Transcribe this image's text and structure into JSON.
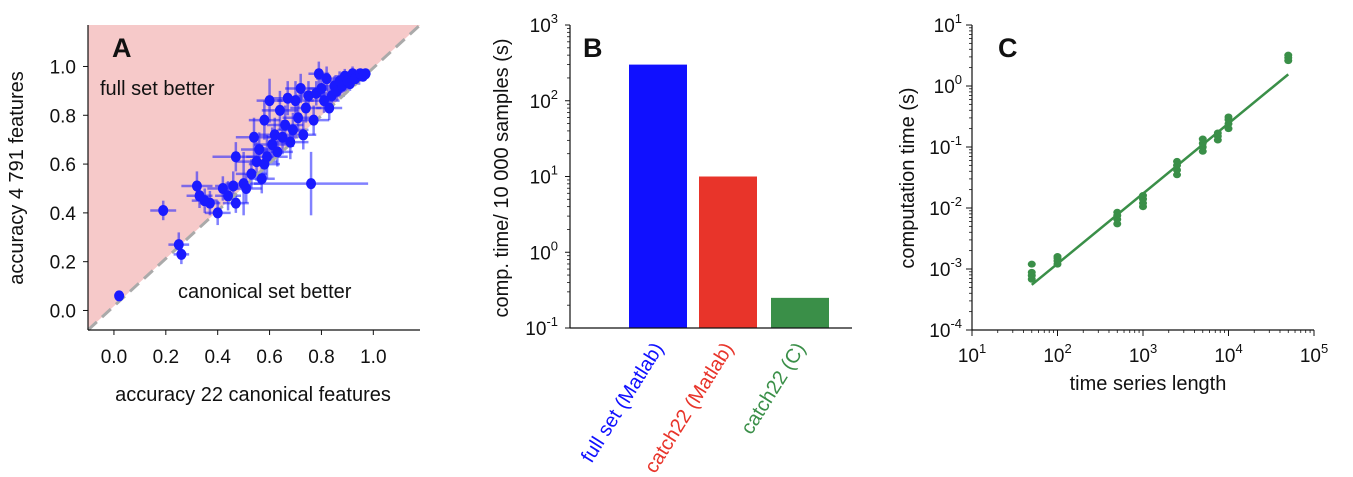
{
  "chart_data": [
    {
      "type": "scatter",
      "panel": "A",
      "xlabel": "accuracy 22 canonical features",
      "ylabel": "accuracy 4 791 features",
      "xlim": [
        -0.1,
        1.18
      ],
      "ylim": [
        -0.08,
        1.17
      ],
      "xticks": [
        "0.0",
        "0.2",
        "0.4",
        "0.6",
        "0.8",
        "1.0"
      ],
      "yticks": [
        "0.0",
        "0.2",
        "0.4",
        "0.6",
        "0.8",
        "1.0"
      ],
      "regions": {
        "upper": "full set better",
        "lower": "canonical set better"
      },
      "colors": {
        "points": "#1a1aff",
        "region": "#f6c9c9",
        "diagonal": "#aaaaaa"
      },
      "points": [
        {
          "x": 0.02,
          "y": 0.06,
          "ex": 0.0,
          "ey": 0.0
        },
        {
          "x": 0.19,
          "y": 0.41,
          "ex": 0.05,
          "ey": 0.04
        },
        {
          "x": 0.25,
          "y": 0.27,
          "ex": 0.04,
          "ey": 0.05
        },
        {
          "x": 0.26,
          "y": 0.23,
          "ex": 0.03,
          "ey": 0.04
        },
        {
          "x": 0.32,
          "y": 0.51,
          "ex": 0.06,
          "ey": 0.06
        },
        {
          "x": 0.33,
          "y": 0.47,
          "ex": 0.05,
          "ey": 0.05
        },
        {
          "x": 0.35,
          "y": 0.45,
          "ex": 0.05,
          "ey": 0.05
        },
        {
          "x": 0.37,
          "y": 0.44,
          "ex": 0.04,
          "ey": 0.05
        },
        {
          "x": 0.4,
          "y": 0.4,
          "ex": 0.05,
          "ey": 0.05
        },
        {
          "x": 0.42,
          "y": 0.5,
          "ex": 0.06,
          "ey": 0.05
        },
        {
          "x": 0.44,
          "y": 0.47,
          "ex": 0.05,
          "ey": 0.06
        },
        {
          "x": 0.46,
          "y": 0.51,
          "ex": 0.07,
          "ey": 0.06
        },
        {
          "x": 0.47,
          "y": 0.63,
          "ex": 0.09,
          "ey": 0.06
        },
        {
          "x": 0.47,
          "y": 0.44,
          "ex": 0.05,
          "ey": 0.04
        },
        {
          "x": 0.5,
          "y": 0.52,
          "ex": 0.07,
          "ey": 0.13
        },
        {
          "x": 0.51,
          "y": 0.5,
          "ex": 0.06,
          "ey": 0.06
        },
        {
          "x": 0.53,
          "y": 0.56,
          "ex": 0.06,
          "ey": 0.06
        },
        {
          "x": 0.54,
          "y": 0.71,
          "ex": 0.07,
          "ey": 0.08
        },
        {
          "x": 0.55,
          "y": 0.61,
          "ex": 0.08,
          "ey": 0.08
        },
        {
          "x": 0.56,
          "y": 0.66,
          "ex": 0.07,
          "ey": 0.07
        },
        {
          "x": 0.57,
          "y": 0.54,
          "ex": 0.05,
          "ey": 0.06
        },
        {
          "x": 0.58,
          "y": 0.6,
          "ex": 0.06,
          "ey": 0.07
        },
        {
          "x": 0.58,
          "y": 0.78,
          "ex": 0.06,
          "ey": 0.08
        },
        {
          "x": 0.59,
          "y": 0.63,
          "ex": 0.08,
          "ey": 0.09
        },
        {
          "x": 0.6,
          "y": 0.86,
          "ex": 0.05,
          "ey": 0.09
        },
        {
          "x": 0.61,
          "y": 0.68,
          "ex": 0.07,
          "ey": 0.07
        },
        {
          "x": 0.62,
          "y": 0.72,
          "ex": 0.06,
          "ey": 0.07
        },
        {
          "x": 0.63,
          "y": 0.65,
          "ex": 0.06,
          "ey": 0.06
        },
        {
          "x": 0.64,
          "y": 0.82,
          "ex": 0.07,
          "ey": 0.08
        },
        {
          "x": 0.65,
          "y": 0.71,
          "ex": 0.06,
          "ey": 0.07
        },
        {
          "x": 0.66,
          "y": 0.76,
          "ex": 0.07,
          "ey": 0.08
        },
        {
          "x": 0.67,
          "y": 0.87,
          "ex": 0.06,
          "ey": 0.07
        },
        {
          "x": 0.68,
          "y": 0.69,
          "ex": 0.07,
          "ey": 0.07
        },
        {
          "x": 0.69,
          "y": 0.74,
          "ex": 0.06,
          "ey": 0.07
        },
        {
          "x": 0.7,
          "y": 0.86,
          "ex": 0.07,
          "ey": 0.08
        },
        {
          "x": 0.71,
          "y": 0.79,
          "ex": 0.06,
          "ey": 0.06
        },
        {
          "x": 0.72,
          "y": 0.91,
          "ex": 0.06,
          "ey": 0.06
        },
        {
          "x": 0.73,
          "y": 0.72,
          "ex": 0.05,
          "ey": 0.06
        },
        {
          "x": 0.74,
          "y": 0.83,
          "ex": 0.06,
          "ey": 0.06
        },
        {
          "x": 0.75,
          "y": 0.88,
          "ex": 0.05,
          "ey": 0.06
        },
        {
          "x": 0.76,
          "y": 0.52,
          "ex": 0.22,
          "ey": 0.13
        },
        {
          "x": 0.77,
          "y": 0.78,
          "ex": 0.06,
          "ey": 0.06
        },
        {
          "x": 0.78,
          "y": 0.89,
          "ex": 0.06,
          "ey": 0.05
        },
        {
          "x": 0.79,
          "y": 0.97,
          "ex": 0.04,
          "ey": 0.05
        },
        {
          "x": 0.8,
          "y": 0.91,
          "ex": 0.05,
          "ey": 0.06
        },
        {
          "x": 0.81,
          "y": 0.86,
          "ex": 0.06,
          "ey": 0.05
        },
        {
          "x": 0.82,
          "y": 0.95,
          "ex": 0.04,
          "ey": 0.05
        },
        {
          "x": 0.83,
          "y": 0.83,
          "ex": 0.05,
          "ey": 0.05
        },
        {
          "x": 0.84,
          "y": 0.88,
          "ex": 0.05,
          "ey": 0.04
        },
        {
          "x": 0.85,
          "y": 0.92,
          "ex": 0.05,
          "ey": 0.04
        },
        {
          "x": 0.86,
          "y": 0.9,
          "ex": 0.04,
          "ey": 0.04
        },
        {
          "x": 0.87,
          "y": 0.94,
          "ex": 0.05,
          "ey": 0.04
        },
        {
          "x": 0.88,
          "y": 0.92,
          "ex": 0.04,
          "ey": 0.03
        },
        {
          "x": 0.89,
          "y": 0.96,
          "ex": 0.04,
          "ey": 0.03
        },
        {
          "x": 0.9,
          "y": 0.94,
          "ex": 0.03,
          "ey": 0.04
        },
        {
          "x": 0.91,
          "y": 0.93,
          "ex": 0.04,
          "ey": 0.03
        },
        {
          "x": 0.92,
          "y": 0.97,
          "ex": 0.03,
          "ey": 0.03
        },
        {
          "x": 0.93,
          "y": 0.95,
          "ex": 0.03,
          "ey": 0.03
        },
        {
          "x": 0.94,
          "y": 0.96,
          "ex": 0.03,
          "ey": 0.03
        },
        {
          "x": 0.95,
          "y": 0.97,
          "ex": 0.03,
          "ey": 0.02
        },
        {
          "x": 0.96,
          "y": 0.96,
          "ex": 0.02,
          "ey": 0.02
        },
        {
          "x": 0.97,
          "y": 0.97,
          "ex": 0.02,
          "ey": 0.02
        }
      ]
    },
    {
      "type": "bar",
      "panel": "B",
      "ylabel": "comp. time/ 10 000 samples (s)",
      "yscale": "log",
      "ylim_exp": [
        -1,
        3
      ],
      "yticks": [
        {
          "base": "10",
          "exp": "-1"
        },
        {
          "base": "10",
          "exp": "0"
        },
        {
          "base": "10",
          "exp": "1"
        },
        {
          "base": "10",
          "exp": "2"
        },
        {
          "base": "10",
          "exp": "3"
        }
      ],
      "categories": [
        "full set (Matlab)",
        "catch22 (Matlab)",
        "catch22 (C)"
      ],
      "values": [
        300,
        10,
        0.25
      ],
      "colors": [
        "#1010ff",
        "#e8342a",
        "#3a8f48"
      ]
    },
    {
      "type": "scatter",
      "panel": "C",
      "xlabel": "time series length",
      "ylabel": "computation time (s)",
      "xscale": "log",
      "yscale": "log",
      "xlim_exp": [
        1,
        5
      ],
      "ylim_exp": [
        -4,
        1
      ],
      "xticks": [
        {
          "base": "10",
          "exp": "1"
        },
        {
          "base": "10",
          "exp": "2"
        },
        {
          "base": "10",
          "exp": "3"
        },
        {
          "base": "10",
          "exp": "4"
        },
        {
          "base": "10",
          "exp": "5"
        }
      ],
      "yticks": [
        {
          "base": "10",
          "exp": "-4"
        },
        {
          "base": "10",
          "exp": "-3"
        },
        {
          "base": "10",
          "exp": "-2"
        },
        {
          "base": "10",
          "exp": "-1"
        },
        {
          "base": "10",
          "exp": "0"
        },
        {
          "base": "10",
          "exp": "1"
        }
      ],
      "color": "#3a8f48",
      "points": [
        {
          "x": 50,
          "y": [
            0.00068,
            0.00078,
            0.00088,
            0.0012
          ]
        },
        {
          "x": 100,
          "y": [
            0.0012,
            0.00135,
            0.0015,
            0.0016
          ]
        },
        {
          "x": 500,
          "y": [
            0.0055,
            0.0065,
            0.0075,
            0.0085
          ]
        },
        {
          "x": 1000,
          "y": [
            0.0105,
            0.012,
            0.014,
            0.016
          ]
        },
        {
          "x": 2500,
          "y": [
            0.035,
            0.042,
            0.05,
            0.058
          ]
        },
        {
          "x": 5000,
          "y": [
            0.085,
            0.1,
            0.115,
            0.135
          ]
        },
        {
          "x": 7500,
          "y": [
            0.13,
            0.15,
            0.17
          ]
        },
        {
          "x": 10000,
          "y": [
            0.2,
            0.24,
            0.28,
            0.31
          ]
        },
        {
          "x": 50000,
          "y": [
            2.6,
            2.9,
            3.2
          ]
        }
      ],
      "fit": {
        "x": [
          50,
          50000
        ],
        "y": [
          0.00055,
          1.55
        ]
      }
    }
  ]
}
